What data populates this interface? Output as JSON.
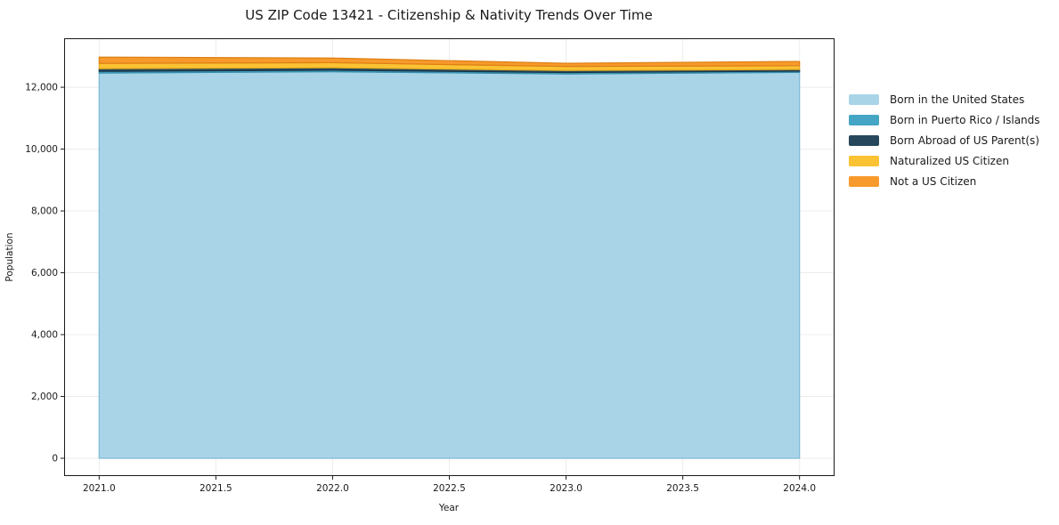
{
  "figure": {
    "background": "#ffffff",
    "spine_color": "#1a1a1a",
    "grid_color": "#ececec",
    "text_color": "#1a1a1a",
    "tick_font_size": 10.5
  },
  "chart_data": {
    "type": "area",
    "stacked": true,
    "title": "US ZIP Code 13421 - Citizenship & Nativity Trends Over Time",
    "xlabel": "Year",
    "ylabel": "Population",
    "x": [
      2021,
      2022,
      2023,
      2024
    ],
    "series": [
      {
        "name": "Born in the United States",
        "color": "#A9D4E8",
        "edge": "#7EB9D6",
        "values": [
          12460,
          12500,
          12430,
          12480
        ]
      },
      {
        "name": "Born in Puerto Rico / Islands",
        "color": "#44A5C4",
        "edge": "#358FAD",
        "values": [
          55,
          50,
          45,
          40
        ]
      },
      {
        "name": "Born Abroad of US Parent(s)",
        "color": "#27485C",
        "edge": "#1C3648",
        "values": [
          85,
          80,
          65,
          55
        ]
      },
      {
        "name": "Naturalized US Citizen",
        "color": "#FBC233",
        "edge": "#E3A81D",
        "values": [
          175,
          165,
          135,
          120
        ]
      },
      {
        "name": "Not a US Citizen",
        "color": "#F79A2B",
        "edge": "#DD7F14",
        "values": [
          200,
          150,
          100,
          140
        ]
      }
    ],
    "totals": [
      12975,
      12945,
      12775,
      12835
    ],
    "xlim": [
      2020.85,
      2024.15
    ],
    "ylim": [
      -575,
      13585
    ],
    "xticks": {
      "values": [
        2021.0,
        2021.5,
        2022.0,
        2022.5,
        2023.0,
        2023.5,
        2024.0
      ],
      "labels": [
        "2021.0",
        "2021.5",
        "2022.0",
        "2022.5",
        "2023.0",
        "2023.5",
        "2024.0"
      ]
    },
    "yticks": {
      "values": [
        0,
        2000,
        4000,
        6000,
        8000,
        10000,
        12000
      ],
      "labels": [
        "0",
        "2,000",
        "4,000",
        "6,000",
        "8,000",
        "10,000",
        "12,000"
      ]
    },
    "grid": true,
    "legend_position": "right-outside"
  }
}
